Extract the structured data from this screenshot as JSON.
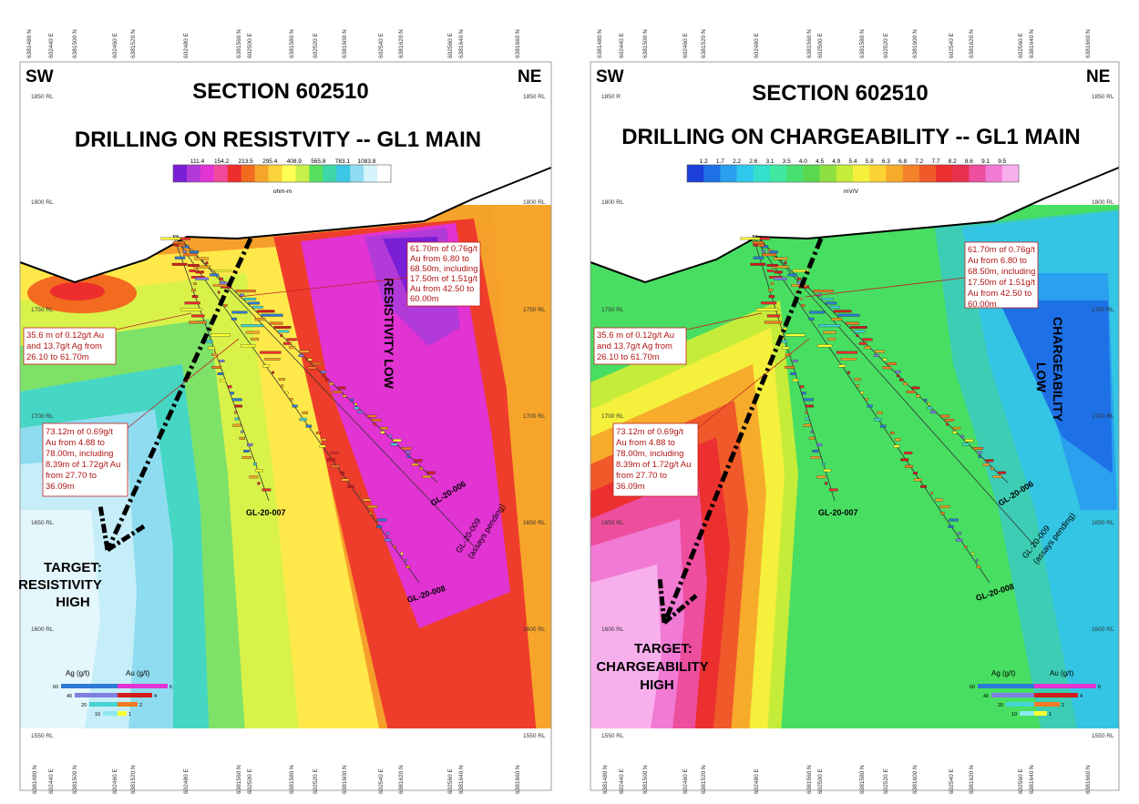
{
  "panels": [
    {
      "id": "resistivity",
      "direction_left": "SW",
      "direction_right": "NE",
      "title": "SECTION 602510",
      "subtitle": "DRILLING ON RESISTVITY -- GL1 MAIN",
      "colorbar": {
        "unit": "ohm-m",
        "labels": [
          "111.4",
          "154.2",
          "213.5",
          "295.4",
          "408.9",
          "565.8",
          "783.1",
          "1083.8"
        ],
        "colors": [
          "#7a1fd6",
          "#b23ad9",
          "#e233d3",
          "#f24a9a",
          "#ee2d2d",
          "#f26b1f",
          "#f7a52a",
          "#fbd33a",
          "#ffff55",
          "#c8f04a",
          "#58e05e",
          "#3ed6a8",
          "#3ac7e4",
          "#8fdcf2",
          "#d4f3fb",
          "#ffffff"
        ]
      },
      "rl_labels": [
        "1850 RL",
        "1800 RL",
        "1750 RL",
        "1700 RL",
        "1650 RL",
        "1600 RL",
        "1550 RL"
      ],
      "axis_labels": [
        "6381480 N",
        "602440 E",
        "6381500 N",
        "602460 E",
        "6381520 N",
        "602480 E",
        "6381560 N",
        "602500 E",
        "6381580 N",
        "602520 E",
        "6381600 N",
        "602540 E",
        "6381620 N",
        "602560 E",
        "6381640 N",
        "6381660 N"
      ],
      "annotations": {
        "a1": [
          "61.70m of 0.76g/t",
          "Au from 6.80 to",
          "68.50m, including",
          "17.50m of 1.51g/t",
          "Au from 42.50 to",
          "60.00m"
        ],
        "a2": [
          "35.6 m of 0.12g/t Au",
          "and 13.7g/t Ag from",
          "26.10 to 61.70m"
        ],
        "a3": [
          "73.12m of 0.69g/t",
          "Au from 4.88 to",
          "78.00m, including",
          "8.39m of 1.72g/t Au",
          "from 27.70 to",
          "36.09m"
        ]
      },
      "low_label": [
        "RESISTIVITY LOW"
      ],
      "target_label": [
        "TARGET:",
        "RESISTIVITY",
        "HIGH"
      ],
      "holes": {
        "h007": "GL-20-007",
        "h006": "GL-20-006",
        "h009": "GL-20-009",
        "h009_note": "(assays pending)",
        "h008": "GL-20-008"
      },
      "legend": {
        "ag_title": "Ag (g/t)",
        "au_title": "Au (g/t)",
        "ag_values": [
          "60",
          "40",
          "20",
          "10"
        ],
        "au_values": [
          "6",
          "4",
          "2",
          "1"
        ]
      },
      "colors": {
        "left_zone": "#aeeef4",
        "right_zone": "#f0f",
        "edge": "#ff3d0f"
      }
    },
    {
      "id": "chargeability",
      "direction_left": "SW",
      "direction_right": "NE",
      "title": "SECTION 602510",
      "subtitle": "DRILLING ON CHARGEABILITY -- GL1 MAIN",
      "colorbar": {
        "unit": "mV/V",
        "labels": [
          "1.2",
          "1.7",
          "2.2",
          "2.6",
          "3.1",
          "3.5",
          "4.0",
          "4.5",
          "4.9",
          "5.4",
          "5.8",
          "6.3",
          "6.8",
          "7.2",
          "7.7",
          "8.2",
          "8.6",
          "9.1",
          "9.5"
        ],
        "colors": [
          "#1c3fd8",
          "#1e70e6",
          "#2aa0ee",
          "#2ec8ec",
          "#34e0cc",
          "#40e8a0",
          "#48e070",
          "#5ad850",
          "#8ee040",
          "#c6ec3a",
          "#f4f03c",
          "#fbd334",
          "#f7ab2b",
          "#f3822a",
          "#f05a2a",
          "#ec3030",
          "#e8304f",
          "#ee4e9e",
          "#f07ad4",
          "#f8b0ec"
        ]
      },
      "rl_labels": [
        "1850 R",
        "1800 RL",
        "1750 RL",
        "1700 RL",
        "1650 RL",
        "1600 RL",
        "1550 RL"
      ],
      "axis_labels": [
        "6381480 N",
        "602440 E",
        "6381500 N",
        "602460 E",
        "6381520 N",
        "602480 E",
        "6381560 N",
        "602500 E",
        "6381580 N",
        "602520 E",
        "6381600 N",
        "602540 E",
        "6381620 N",
        "602560 E",
        "6381640 N",
        "6381660 N"
      ],
      "annotations": {
        "a1": [
          "61.70m of 0.76g/t",
          "Au from 6.80 to",
          "68.50m, including",
          "17.50m of 1.51g/t",
          "Au from 42.50 to",
          "60.00m"
        ],
        "a2": [
          "35.6 m of 0.12g/t Au",
          "and 13.7g/t Ag from",
          "26.10 to 61.70m"
        ],
        "a3": [
          "73.12m of 0.69g/t",
          "Au from 4.88 to",
          "78.00m, including",
          "8.39m of 1.72g/t Au",
          "from 27.70 to",
          "36.09m"
        ]
      },
      "low_label": [
        "CHARGEABILITY",
        "LOW"
      ],
      "target_label": [
        "TARGET:",
        "CHARGEABILITY",
        "HIGH"
      ],
      "holes": {
        "h007": "GL-20-007",
        "h006": "GL-20-006",
        "h009": "GL-20-009",
        "h009_note": "(assays pending)",
        "h008": "GL-20-008"
      },
      "legend": {
        "ag_title": "Ag (g/t)",
        "au_title": "Au (g/t)",
        "ag_values": [
          "60",
          "40",
          "20",
          "10"
        ],
        "au_values": [
          "6",
          "4",
          "2",
          "1"
        ]
      },
      "colors": {
        "left_zone": "#f06ad0",
        "right_zone": "#35c0ec",
        "edge": "#3ad66a"
      }
    }
  ]
}
